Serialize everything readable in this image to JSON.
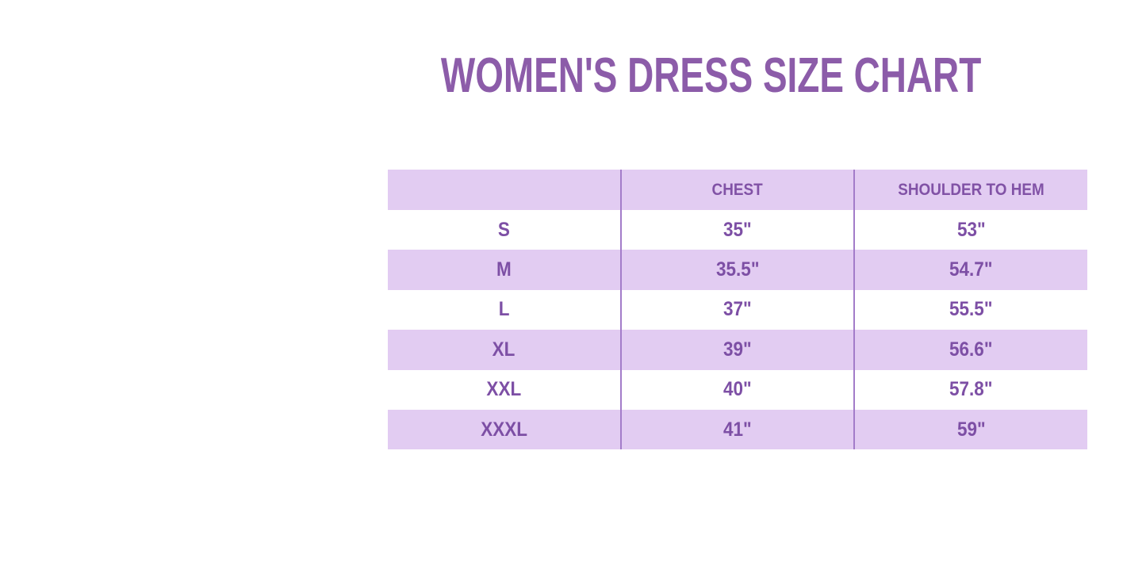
{
  "title": "WOMEN'S DRESS SIZE CHART",
  "colors": {
    "title_purple": "#8c5ca9",
    "cell_text_purple": "#7d4fa5",
    "header_text_purple": "#8152a6",
    "row_lavender": "#e2ccf2",
    "column_divider": "#a37cc9",
    "background": "#ffffff"
  },
  "table": {
    "headers": [
      "",
      "CHEST",
      "SHOULDER TO HEM"
    ],
    "rows": [
      {
        "size": "S",
        "chest": "35\"",
        "shoulder_to_hem": "53\""
      },
      {
        "size": "M",
        "chest": "35.5\"",
        "shoulder_to_hem": "54.7\""
      },
      {
        "size": "L",
        "chest": "37\"",
        "shoulder_to_hem": "55.5\""
      },
      {
        "size": "XL",
        "chest": "39\"",
        "shoulder_to_hem": "56.6\""
      },
      {
        "size": "XXL",
        "chest": "40\"",
        "shoulder_to_hem": "57.8\""
      },
      {
        "size": "XXXL",
        "chest": "41\"",
        "shoulder_to_hem": "59\""
      }
    ]
  },
  "chart_data": {
    "type": "table",
    "title": "WOMEN'S DRESS SIZE CHART",
    "columns": [
      "",
      "CHEST",
      "SHOULDER TO HEM"
    ],
    "rows": [
      [
        "S",
        "35\"",
        "53\""
      ],
      [
        "M",
        "35.5\"",
        "54.7\""
      ],
      [
        "L",
        "37\"",
        "55.5\""
      ],
      [
        "XL",
        "39\"",
        "56.6\""
      ],
      [
        "XXL",
        "40\"",
        "57.8\""
      ],
      [
        "XXXL",
        "41\"",
        "59\""
      ]
    ],
    "layout": {
      "alternating_row_colors": [
        "#ffffff",
        "#e2ccf2"
      ],
      "header_background": "#e2ccf2",
      "column_dividers": true,
      "horizontal_gridlines": false
    }
  }
}
